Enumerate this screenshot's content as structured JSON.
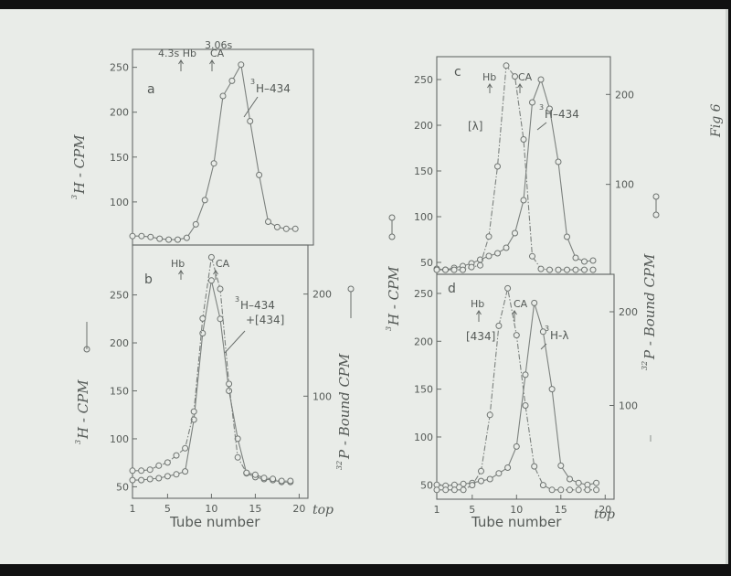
{
  "page": {
    "background": "#e9ece8",
    "ink_color": "#666b68",
    "marginal_note": "Fig 6"
  },
  "annotations": {
    "a_label": "a",
    "a_hb": "4.3s Hb",
    "a_s": "3.06s",
    "a_ca": "CA",
    "a_h434": "H–434",
    "a_h434_sup": "3",
    "b_label": "b",
    "b_hb": "Hb",
    "b_ca": "CA",
    "b_h434": "H–434",
    "b_h434_sup": "3",
    "b_plus": "+[434]",
    "c_label": "c",
    "c_hb": "Hb",
    "c_ca": "CA",
    "c_h434": "H–434",
    "c_h434_sup": "3",
    "c_lambda": "[λ]",
    "d_label": "d",
    "d_hb": "Hb",
    "d_ca": "CA",
    "d_434": "[434]",
    "d_hl": "H-λ",
    "d_hl_sup": "3"
  },
  "axis_labels": {
    "left_a": "H - CPM",
    "left_a_sup": "3",
    "left_b": "H - CPM",
    "left_b_sup": "3",
    "right_b": "P - Bound CPM",
    "right_b_sup": "32",
    "left_cd": "H - CPM",
    "left_cd_sup": "3",
    "right_c": "P - Bound CPM",
    "right_c_sup": "32",
    "x_left": "Tube number",
    "x_right": "Tube number",
    "top_left": "top",
    "top_right": "top"
  },
  "chart_data": [
    {
      "panel": "a",
      "type": "line",
      "x_ticks": [],
      "y_ticks": [
        100,
        150,
        200,
        250
      ],
      "xlim": [
        1,
        21
      ],
      "ylim": [
        52,
        270
      ],
      "series": [
        {
          "axis": "left",
          "style": "solid",
          "x": [
            1,
            2,
            3,
            4,
            5,
            6,
            7,
            8,
            9,
            10,
            11,
            12,
            13,
            14,
            15,
            16,
            17,
            18,
            19
          ],
          "y": [
            62,
            62,
            61,
            59,
            58,
            58,
            60,
            75,
            102,
            143,
            218,
            235,
            253,
            190,
            130,
            78,
            72,
            70,
            70
          ]
        }
      ]
    },
    {
      "panel": "b",
      "type": "line",
      "x_ticks": [
        1,
        5,
        10,
        15,
        20
      ],
      "y_ticks": [
        50,
        100,
        150,
        200,
        250
      ],
      "y2_ticks": [
        100,
        200
      ],
      "xlim": [
        1,
        21
      ],
      "ylim": [
        38,
        302
      ],
      "y2lim": [
        0,
        248
      ],
      "series": [
        {
          "axis": "left",
          "style": "solid",
          "x": [
            1,
            2,
            3,
            4,
            5,
            6,
            7,
            8,
            9,
            10,
            11,
            12,
            13,
            14,
            15,
            16,
            17,
            18,
            19
          ],
          "y": [
            57,
            57,
            58,
            59,
            61,
            63,
            66,
            120,
            210,
            265,
            225,
            150,
            100,
            64,
            60,
            58,
            57,
            55,
            55
          ]
        },
        {
          "axis": "right",
          "style": "dashdot",
          "x": [
            1,
            2,
            3,
            4,
            5,
            6,
            7,
            8,
            9,
            10,
            11,
            12,
            13,
            14,
            15,
            16,
            17,
            18,
            19
          ],
          "y": [
            27,
            27,
            28,
            32,
            35,
            42,
            49,
            85,
            176,
            236,
            205,
            112,
            40,
            25,
            23,
            20,
            19,
            17,
            17
          ]
        }
      ]
    },
    {
      "panel": "c",
      "type": "line",
      "x_ticks": [],
      "y_ticks": [
        50,
        100,
        150,
        200,
        250
      ],
      "y2_ticks": [
        100,
        200
      ],
      "xlim": [
        1,
        21
      ],
      "ylim": [
        37,
        275
      ],
      "y2lim": [
        0,
        242
      ],
      "series": [
        {
          "axis": "left",
          "style": "solid",
          "x": [
            1,
            2,
            3,
            4,
            5,
            6,
            7,
            8,
            9,
            10,
            11,
            12,
            13,
            14,
            15,
            16,
            17,
            18,
            19
          ],
          "y": [
            43,
            42,
            44,
            46,
            49,
            53,
            57,
            60,
            66,
            82,
            118,
            225,
            250,
            218,
            160,
            78,
            55,
            51,
            52
          ]
        },
        {
          "axis": "right",
          "style": "dashdot",
          "x": [
            1,
            2,
            3,
            4,
            5,
            6,
            7,
            8,
            9,
            10,
            11,
            12,
            13,
            14,
            15,
            16,
            17,
            18,
            19
          ],
          "y": [
            5,
            5,
            5,
            5,
            8,
            10,
            42,
            120,
            232,
            220,
            150,
            20,
            6,
            5,
            5,
            5,
            5,
            5,
            5
          ]
        }
      ]
    },
    {
      "panel": "d",
      "type": "line",
      "x_ticks": [
        1,
        5,
        10,
        15,
        20
      ],
      "y_ticks": [
        50,
        100,
        150,
        200,
        250
      ],
      "y2_ticks": [
        100,
        200
      ],
      "xlim": [
        1,
        21
      ],
      "ylim": [
        35,
        270
      ],
      "y2lim": [
        0,
        240
      ],
      "series": [
        {
          "axis": "left",
          "style": "solid",
          "x": [
            1,
            2,
            3,
            4,
            5,
            6,
            7,
            8,
            9,
            10,
            11,
            12,
            13,
            14,
            15,
            16,
            17,
            18,
            19
          ],
          "y": [
            50,
            49,
            50,
            51,
            52,
            54,
            56,
            62,
            68,
            90,
            165,
            240,
            210,
            150,
            70,
            56,
            52,
            50,
            52
          ]
        },
        {
          "axis": "right",
          "style": "dashdot",
          "x": [
            1,
            2,
            3,
            4,
            5,
            6,
            7,
            8,
            9,
            10,
            11,
            12,
            13,
            14,
            15,
            16,
            17,
            18,
            19
          ],
          "y": [
            10,
            10,
            10,
            10,
            15,
            30,
            90,
            185,
            225,
            175,
            100,
            35,
            15,
            10,
            10,
            10,
            10,
            10,
            10
          ]
        }
      ]
    }
  ]
}
